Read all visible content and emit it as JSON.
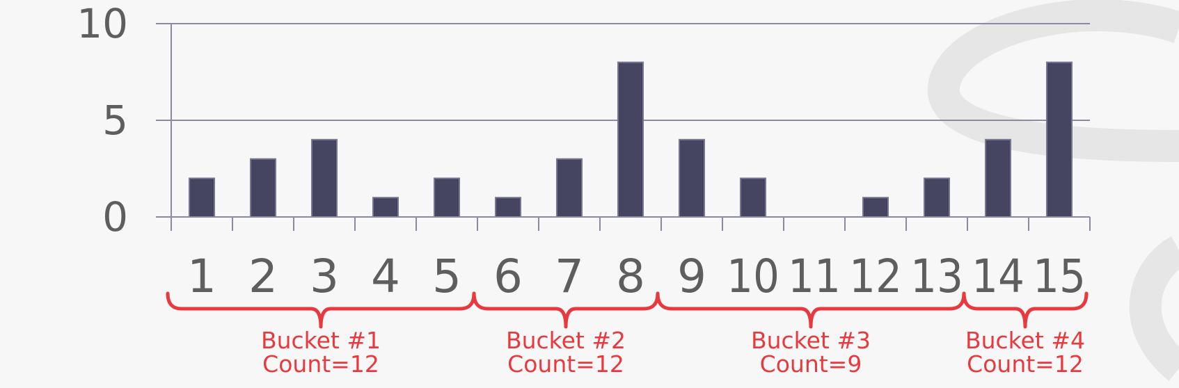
{
  "chart_data": {
    "type": "bar",
    "title": "",
    "xlabel": "",
    "ylabel": "",
    "categories": [
      "1",
      "2",
      "3",
      "4",
      "5",
      "6",
      "7",
      "8",
      "9",
      "10",
      "11",
      "12",
      "13",
      "14",
      "15"
    ],
    "values": [
      2,
      3,
      4,
      1,
      2,
      1,
      3,
      8,
      4,
      2,
      0,
      1,
      2,
      4,
      8
    ],
    "ylim": [
      0,
      10
    ],
    "yticks": [
      "0",
      "5",
      "10"
    ],
    "grid": true,
    "legend": "none",
    "buckets": [
      {
        "label": "Bucket #1",
        "count": "Count=12",
        "from": 1,
        "to": 5
      },
      {
        "label": "Bucket #2",
        "count": "Count=12",
        "from": 6,
        "to": 8
      },
      {
        "label": "Bucket #3",
        "count": "Count=9",
        "from": 9,
        "to": 13
      },
      {
        "label": "Bucket #4",
        "count": "Count=12",
        "from": 14,
        "to": 15
      }
    ]
  },
  "colors": {
    "bar": "#454562",
    "axis": "#8a8aa0",
    "tick_text": "#5e5e5e",
    "bucket": "#e8393e",
    "watermark": "#e4e4e4"
  }
}
